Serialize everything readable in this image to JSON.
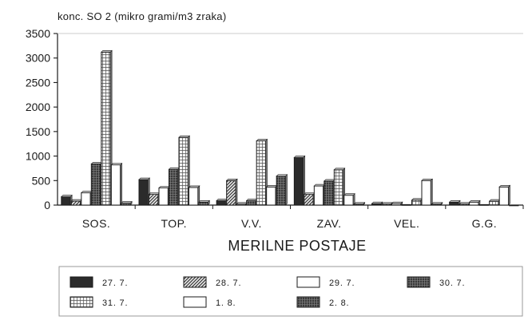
{
  "chart_data": {
    "type": "bar",
    "title": "",
    "ylabel": "konc. SO 2 (mikro grami/m3 zraka)",
    "xlabel": "MERILNE POSTAJE",
    "ylim": [
      0,
      3500
    ],
    "yticks": [
      0,
      500,
      1000,
      1500,
      2000,
      2500,
      3000,
      3500
    ],
    "grid": false,
    "legend_position": "bottom",
    "categories": [
      "SOS.",
      "TOP.",
      "V.V.",
      "ZAV.",
      "VEL.",
      "G.G."
    ],
    "series": [
      {
        "name": "27. 7.",
        "fill": "solid-dark",
        "values": [
          170,
          520,
          90,
          970,
          30,
          60
        ]
      },
      {
        "name": "28. 7.",
        "fill": "diagonal",
        "values": [
          80,
          220,
          500,
          220,
          20,
          20
        ]
      },
      {
        "name": "29. 7.",
        "fill": "white",
        "values": [
          250,
          350,
          20,
          390,
          30,
          60
        ]
      },
      {
        "name": "30. 7.",
        "fill": "dark-grid",
        "values": [
          840,
          730,
          90,
          490,
          10,
          10
        ]
      },
      {
        "name": "31. 7.",
        "fill": "light-grid",
        "values": [
          3120,
          1380,
          1310,
          720,
          100,
          80
        ]
      },
      {
        "name": "1. 8.",
        "fill": "white",
        "values": [
          820,
          360,
          370,
          200,
          500,
          370
        ]
      },
      {
        "name": "2. 8.",
        "fill": "dark-grid",
        "values": [
          40,
          60,
          590,
          20,
          20,
          0
        ]
      }
    ]
  },
  "colors": {
    "ink": "#1a1a1a",
    "solid": "#2b2b2b",
    "dark_grid_bg": "#3a3a3a",
    "light_grid_bg": "#f2f2f2",
    "background": "#ffffff"
  }
}
